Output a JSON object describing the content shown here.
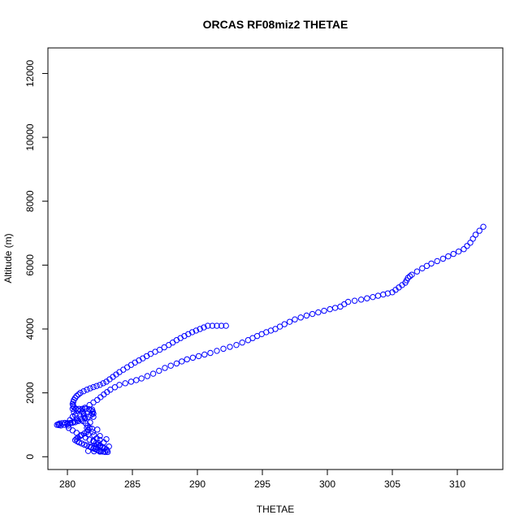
{
  "chart_data": {
    "type": "scatter",
    "title": "ORCAS RF08miz2 THETAE",
    "xlabel": "THETAE",
    "ylabel": "Altitude (m)",
    "xlim": [
      278.5,
      313.5
    ],
    "ylim": [
      -400,
      12800
    ],
    "x_ticks": [
      280,
      285,
      290,
      295,
      300,
      305,
      310
    ],
    "y_ticks": [
      0,
      2000,
      4000,
      6000,
      8000,
      10000,
      12000
    ],
    "grid": false,
    "legend": "none",
    "point_color": "#0000ff",
    "series": [
      {
        "segments": [
          {
            "x": [
              312.0,
              311.4,
              311.0,
              310.5,
              309.7,
              308.9,
              308.0,
              307.3,
              306.5,
              306.2,
              306.0,
              305.5,
              305.0,
              304.3,
              303.5,
              302.6,
              301.6,
              301.0,
              300.2,
              299.3,
              298.4,
              297.5,
              296.7,
              296.0,
              295.3,
              294.6,
              293.9,
              293.0,
              292.0,
              291.0,
              290.1,
              289.2,
              288.4,
              287.5,
              286.6,
              285.7,
              284.9,
              284.0,
              283.3,
              282.8,
              282.3,
              281.7,
              281.0,
              280.4,
              280.0,
              280.1,
              280.7,
              281.4,
              282.0,
              282.4,
              282.7,
              283.0,
              283.1
            ],
            "y": [
              7200,
              6950,
              6700,
              6500,
              6350,
              6200,
              6050,
              5900,
              5700,
              5600,
              5450,
              5300,
              5150,
              5080,
              5000,
              4920,
              4850,
              4700,
              4620,
              4520,
              4420,
              4300,
              4150,
              4000,
              3900,
              3780,
              3650,
              3500,
              3380,
              3250,
              3150,
              3050,
              2920,
              2780,
              2600,
              2450,
              2350,
              2250,
              2100,
              1950,
              1780,
              1620,
              1450,
              1250,
              1050,
              900,
              750,
              600,
              470,
              380,
              300,
              230,
              150
            ]
          },
          {
            "x": [
              292.2,
              291.5,
              290.8,
              290.2,
              289.6,
              289.0,
              288.4,
              287.8,
              287.1,
              286.4,
              285.8,
              285.2,
              284.6,
              284.0,
              283.5,
              283.0,
              282.5,
              282.0,
              281.5,
              281.0,
              280.7,
              280.5,
              280.4,
              280.5,
              280.8
            ],
            "y": [
              4100,
              4100,
              4100,
              4000,
              3900,
              3780,
              3650,
              3500,
              3350,
              3220,
              3080,
              2950,
              2800,
              2650,
              2500,
              2350,
              2250,
              2180,
              2100,
              2000,
              1900,
              1780,
              1650,
              1550,
              1450
            ]
          },
          {
            "x": [
              280.4,
              280.9,
              281.4,
              281.9,
              282.0,
              281.6,
              281.1,
              280.6,
              280.2,
              279.8,
              279.4,
              279.2,
              279.5,
              280.0,
              280.5,
              281.0,
              281.4,
              281.7,
              281.5,
              281.1,
              280.8,
              280.6,
              280.9,
              281.3,
              281.7,
              282.0,
              282.3,
              282.6,
              282.9
            ],
            "y": [
              1500,
              1500,
              1500,
              1480,
              1350,
              1250,
              1150,
              1080,
              1050,
              1060,
              1040,
              1000,
              980,
              1020,
              1100,
              1180,
              1050,
              900,
              780,
              680,
              600,
              520,
              450,
              380,
              320,
              260,
              210,
              170,
              150
            ]
          },
          {
            "x": [
              280.5,
              281.8,
              280.6,
              281.9,
              280.7,
              282.0,
              281.5,
              282.3,
              281.6,
              282.5,
              282.0,
              283.0,
              281.8,
              283.2,
              282.2,
              282.8,
              281.6,
              282.5
            ],
            "y": [
              1400,
              1450,
              1300,
              1350,
              1200,
              1250,
              900,
              850,
              700,
              650,
              500,
              550,
              300,
              320,
              250,
              450,
              180,
              160
            ]
          }
        ]
      }
    ]
  }
}
